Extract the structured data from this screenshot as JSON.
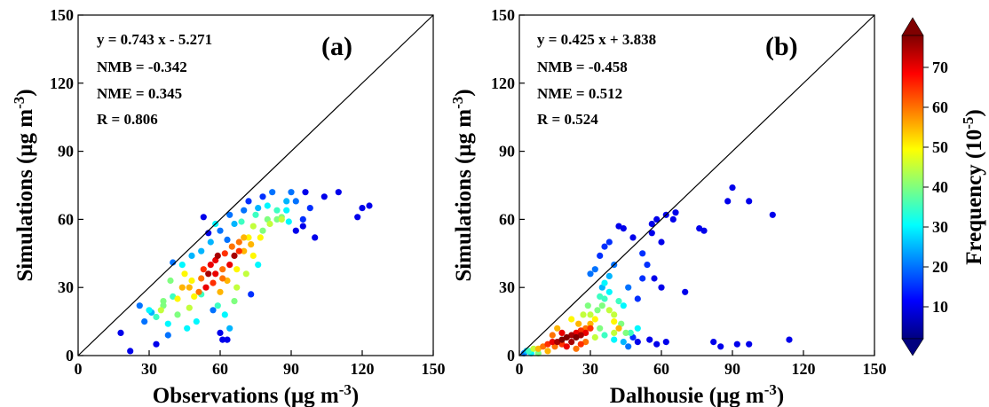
{
  "chart_data": [
    {
      "type": "scatter",
      "panel_label": "(a)",
      "xlabel_main": "Observations (μg m",
      "xlabel_sup": "-3",
      "xlabel_tail": ")",
      "ylabel_main": "Simulations (μg m",
      "ylabel_sup": "-3",
      "ylabel_tail": ")",
      "xlim": [
        0,
        150
      ],
      "ylim": [
        0,
        150
      ],
      "xticks": [
        "0",
        "30",
        "60",
        "90",
        "120",
        "150"
      ],
      "yticks": [
        "0",
        "30",
        "60",
        "90",
        "120",
        "150"
      ],
      "one_to_one_line": true,
      "stats": [
        "y = 0.743 x - 5.271",
        "NMB = -0.342",
        "NME = 0.345",
        "R = 0.806"
      ],
      "points": [
        [
          18,
          10,
          10
        ],
        [
          22,
          2,
          10
        ],
        [
          33,
          5,
          10
        ],
        [
          28,
          15,
          20
        ],
        [
          30,
          20,
          30
        ],
        [
          33,
          17,
          35
        ],
        [
          36,
          22,
          40
        ],
        [
          38,
          9,
          20
        ],
        [
          38,
          14,
          30
        ],
        [
          40,
          26,
          35
        ],
        [
          42,
          18,
          40
        ],
        [
          44,
          30,
          55
        ],
        [
          45,
          36,
          50
        ],
        [
          47,
          21,
          45
        ],
        [
          49,
          26,
          50
        ],
        [
          50,
          15,
          30
        ],
        [
          52,
          34,
          60
        ],
        [
          53,
          38,
          65
        ],
        [
          54,
          30,
          70
        ],
        [
          55,
          36,
          75
        ],
        [
          56,
          40,
          70
        ],
        [
          57,
          32,
          65
        ],
        [
          58,
          42,
          70
        ],
        [
          59,
          44,
          75
        ],
        [
          60,
          28,
          55
        ],
        [
          61,
          38,
          60
        ],
        [
          62,
          18,
          30
        ],
        [
          62,
          45,
          65
        ],
        [
          63,
          33,
          55
        ],
        [
          64,
          40,
          70
        ],
        [
          65,
          48,
          60
        ],
        [
          66,
          44,
          75
        ],
        [
          66,
          24,
          40
        ],
        [
          67,
          30,
          45
        ],
        [
          68,
          50,
          60
        ],
        [
          70,
          46,
          55
        ],
        [
          71,
          36,
          45
        ],
        [
          72,
          52,
          50
        ],
        [
          73,
          27,
          15
        ],
        [
          74,
          57,
          45
        ],
        [
          75,
          62,
          35
        ],
        [
          76,
          40,
          30
        ],
        [
          78,
          55,
          40
        ],
        [
          80,
          66,
          30
        ],
        [
          81,
          58,
          45
        ],
        [
          82,
          72,
          20
        ],
        [
          84,
          64,
          35
        ],
        [
          86,
          61,
          40
        ],
        [
          88,
          68,
          25
        ],
        [
          89,
          59,
          30
        ],
        [
          90,
          72,
          20
        ],
        [
          92,
          55,
          10
        ],
        [
          95,
          57,
          10
        ],
        [
          96,
          72,
          10
        ],
        [
          98,
          65,
          15
        ],
        [
          100,
          52,
          10
        ],
        [
          104,
          70,
          10
        ],
        [
          110,
          72,
          10
        ],
        [
          118,
          61,
          10
        ],
        [
          120,
          65,
          10
        ],
        [
          123,
          66,
          10
        ],
        [
          61,
          7,
          10
        ],
        [
          63,
          7,
          10
        ],
        [
          60,
          10,
          10
        ],
        [
          55,
          54,
          10
        ],
        [
          53,
          61,
          10
        ],
        [
          57,
          20,
          20
        ],
        [
          52,
          27,
          35
        ],
        [
          48,
          33,
          50
        ],
        [
          44,
          40,
          30
        ],
        [
          40,
          41,
          20
        ],
        [
          64,
          62,
          20
        ],
        [
          66,
          58,
          25
        ],
        [
          70,
          64,
          20
        ],
        [
          72,
          68,
          15
        ],
        [
          76,
          65,
          25
        ],
        [
          78,
          70,
          15
        ],
        [
          84,
          60,
          40
        ],
        [
          69,
          59,
          35
        ],
        [
          58,
          58,
          30
        ],
        [
          46,
          12,
          30
        ],
        [
          36,
          24,
          40
        ],
        [
          26,
          22,
          20
        ],
        [
          31,
          19,
          25
        ],
        [
          35,
          20,
          45
        ],
        [
          42,
          25,
          50
        ],
        [
          47,
          30,
          55
        ],
        [
          51,
          28,
          60
        ],
        [
          58,
          36,
          70
        ],
        [
          61,
          34,
          60
        ],
        [
          68,
          46,
          65
        ],
        [
          70,
          52,
          55
        ],
        [
          73,
          49,
          55
        ],
        [
          77,
          52,
          50
        ],
        [
          80,
          60,
          40
        ],
        [
          86,
          60,
          45
        ],
        [
          88,
          64,
          30
        ],
        [
          92,
          68,
          20
        ],
        [
          95,
          60,
          15
        ],
        [
          39,
          33,
          40
        ],
        [
          48,
          44,
          25
        ],
        [
          52,
          46,
          25
        ],
        [
          56,
          50,
          25
        ],
        [
          60,
          55,
          20
        ],
        [
          63,
          51,
          20
        ],
        [
          67,
          38,
          50
        ],
        [
          74,
          44,
          50
        ],
        [
          64,
          12,
          25
        ],
        [
          59,
          22,
          35
        ]
      ]
    },
    {
      "type": "scatter",
      "panel_label": "(b)",
      "xlabel_main": "Dalhousie (μg m",
      "xlabel_sup": "-3",
      "xlabel_tail": ")",
      "ylabel_main": "Simulations (μg m",
      "ylabel_sup": "-3",
      "ylabel_tail": ")",
      "xlim": [
        0,
        150
      ],
      "ylim": [
        0,
        150
      ],
      "xticks": [
        "0",
        "30",
        "60",
        "90",
        "120",
        "150"
      ],
      "yticks": [
        "0",
        "30",
        "60",
        "90",
        "120",
        "150"
      ],
      "one_to_one_line": true,
      "stats": [
        "y = 0.425 x + 3.838",
        "NMB = -0.458",
        "NME = 0.512",
        "R = 0.524"
      ],
      "points": [
        [
          2,
          1,
          20
        ],
        [
          4,
          2,
          35
        ],
        [
          6,
          3,
          45
        ],
        [
          8,
          3,
          55
        ],
        [
          10,
          4,
          60
        ],
        [
          12,
          5,
          65
        ],
        [
          14,
          6,
          70
        ],
        [
          16,
          6,
          75
        ],
        [
          18,
          7,
          78
        ],
        [
          20,
          8,
          78
        ],
        [
          22,
          9,
          75
        ],
        [
          24,
          10,
          70
        ],
        [
          26,
          11,
          65
        ],
        [
          28,
          12,
          60
        ],
        [
          30,
          14,
          55
        ],
        [
          32,
          16,
          50
        ],
        [
          20,
          4,
          70
        ],
        [
          22,
          6,
          75
        ],
        [
          24,
          8,
          78
        ],
        [
          26,
          9,
          75
        ],
        [
          28,
          10,
          70
        ],
        [
          30,
          12,
          65
        ],
        [
          18,
          5,
          65
        ],
        [
          15,
          4,
          60
        ],
        [
          25,
          14,
          55
        ],
        [
          30,
          18,
          45
        ],
        [
          33,
          20,
          40
        ],
        [
          35,
          22,
          40
        ],
        [
          36,
          25,
          35
        ],
        [
          38,
          20,
          45
        ],
        [
          40,
          15,
          50
        ],
        [
          42,
          12,
          55
        ],
        [
          38,
          28,
          30
        ],
        [
          35,
          30,
          25
        ],
        [
          36,
          32,
          30
        ],
        [
          38,
          35,
          25
        ],
        [
          40,
          18,
          45
        ],
        [
          42,
          24,
          35
        ],
        [
          44,
          22,
          30
        ],
        [
          45,
          10,
          40
        ],
        [
          46,
          30,
          20
        ],
        [
          50,
          25,
          15
        ],
        [
          52,
          34,
          15
        ],
        [
          54,
          40,
          15
        ],
        [
          56,
          58,
          10
        ],
        [
          58,
          60,
          10
        ],
        [
          62,
          62,
          10
        ],
        [
          66,
          63,
          10
        ],
        [
          60,
          50,
          10
        ],
        [
          56,
          54,
          10
        ],
        [
          44,
          56,
          10
        ],
        [
          48,
          52,
          10
        ],
        [
          52,
          45,
          15
        ],
        [
          30,
          36,
          20
        ],
        [
          32,
          38,
          20
        ],
        [
          34,
          44,
          15
        ],
        [
          36,
          48,
          15
        ],
        [
          38,
          50,
          15
        ],
        [
          40,
          40,
          20
        ],
        [
          42,
          57,
          10
        ],
        [
          70,
          28,
          10
        ],
        [
          76,
          56,
          10
        ],
        [
          88,
          68,
          10
        ],
        [
          90,
          74,
          10
        ],
        [
          97,
          68,
          10
        ],
        [
          107,
          62,
          10
        ],
        [
          114,
          7,
          10
        ],
        [
          97,
          5,
          10
        ],
        [
          92,
          5,
          10
        ],
        [
          85,
          4,
          10
        ],
        [
          82,
          6,
          10
        ],
        [
          78,
          55,
          10
        ],
        [
          62,
          6,
          10
        ],
        [
          58,
          5,
          10
        ],
        [
          55,
          7,
          10
        ],
        [
          50,
          6,
          10
        ],
        [
          48,
          8,
          15
        ],
        [
          46,
          4,
          20
        ],
        [
          44,
          6,
          25
        ],
        [
          40,
          7,
          30
        ],
        [
          36,
          9,
          35
        ],
        [
          34,
          12,
          40
        ],
        [
          32,
          8,
          45
        ],
        [
          28,
          6,
          60
        ],
        [
          26,
          5,
          65
        ],
        [
          24,
          3,
          60
        ],
        [
          12,
          2,
          55
        ],
        [
          8,
          1,
          40
        ],
        [
          5,
          1,
          30
        ],
        [
          3,
          2,
          25
        ],
        [
          14,
          9,
          60
        ],
        [
          18,
          10,
          70
        ],
        [
          16,
          12,
          55
        ],
        [
          22,
          16,
          50
        ],
        [
          27,
          18,
          45
        ],
        [
          29,
          22,
          40
        ],
        [
          34,
          26,
          35
        ],
        [
          40,
          10,
          45
        ],
        [
          43,
          14,
          40
        ],
        [
          47,
          10,
          35
        ],
        [
          50,
          12,
          30
        ],
        [
          57,
          34,
          10
        ],
        [
          60,
          30,
          10
        ],
        [
          65,
          60,
          10
        ]
      ]
    }
  ],
  "colorbar": {
    "label_main": "Frequency (10",
    "label_sup": "-5",
    "label_tail": ")",
    "ticks": [
      "10",
      "20",
      "30",
      "40",
      "50",
      "60",
      "70"
    ],
    "range": [
      2,
      78
    ],
    "colors": [
      "#00007f",
      "#0000ff",
      "#007fff",
      "#00ffff",
      "#7fff7f",
      "#ffff00",
      "#ff7f00",
      "#ff0000",
      "#7f0000"
    ]
  }
}
